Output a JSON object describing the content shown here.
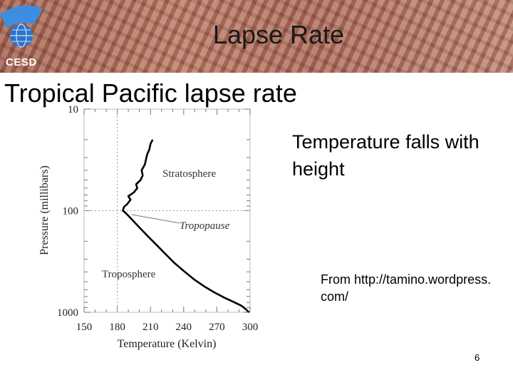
{
  "slide": {
    "title": "Lapse Rate",
    "logo_text": "CESD",
    "heading": "Tropical Pacific lapse rate",
    "body_text": "Temperature falls with height",
    "source_text": "From http://tamino.wordpress.com/",
    "page_number": "6"
  },
  "colors": {
    "banner": "#a8695c",
    "logo_blue": "#2b74c8",
    "text": "#000000"
  },
  "chart_data": {
    "type": "line",
    "xlabel": "Temperature (Kelvin)",
    "ylabel": "Pressure (millibars)",
    "xlim": [
      150,
      300
    ],
    "ylim": [
      1000,
      10
    ],
    "y_scale": "log",
    "x_ticks": [
      "150",
      "180",
      "210",
      "240",
      "270",
      "300"
    ],
    "y_ticks": [
      "10",
      "100",
      "1000"
    ],
    "grid": "dotted at 180 K and 100 mb",
    "annotations": [
      "Stratosphere",
      "Tropopause",
      "Troposphere"
    ],
    "series": [
      {
        "x": [
          299,
          296,
          292,
          285,
          277,
          268,
          259,
          250,
          241,
          232,
          224,
          216,
          208,
          201,
          195,
          190,
          187,
          185,
          186,
          189,
          192,
          190,
          195,
          198,
          197,
          201,
          203,
          202,
          205,
          206,
          207,
          209,
          210,
          212
        ],
        "y": [
          1000,
          930,
          860,
          790,
          720,
          640,
          560,
          480,
          400,
          330,
          270,
          220,
          180,
          150,
          128,
          112,
          104,
          100,
          92,
          86,
          78,
          72,
          66,
          60,
          55,
          50,
          45,
          40,
          35,
          31,
          28,
          25,
          22,
          20
        ]
      }
    ]
  }
}
